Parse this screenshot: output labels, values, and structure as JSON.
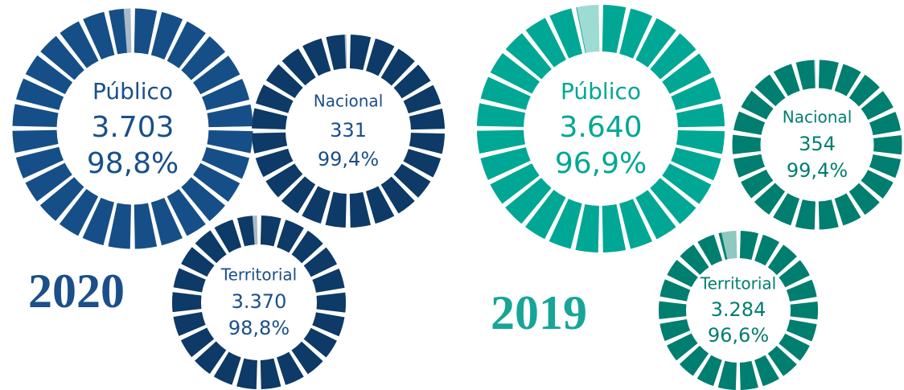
{
  "chart_data": [
    {
      "type": "donut",
      "label": "Público",
      "count": {
        "value": 3703,
        "label": "3.703"
      },
      "values": [
        98.8
      ],
      "value_labels": [
        "98,8%"
      ],
      "color": "#164f88",
      "rest_color": "#a9b9c9",
      "text_color": "#1a4f8a"
    },
    {
      "type": "donut",
      "label": "Nacional",
      "count": {
        "value": 331,
        "label": "331"
      },
      "values": [
        99.4
      ],
      "value_labels": [
        "99,4%"
      ],
      "color": "#0d3a66",
      "rest_color": "#a9b9c9",
      "text_color": "#1a4f8a"
    },
    {
      "type": "donut",
      "label": "Territorial",
      "count": {
        "value": 3370,
        "label": "3.370"
      },
      "values": [
        98.8
      ],
      "value_labels": [
        "98,8%"
      ],
      "color": "#0d3a66",
      "rest_color": "#a9b9c9",
      "text_color": "#1a4f8a"
    },
    {
      "type": "donut",
      "label": "Público",
      "count": {
        "value": 3640,
        "label": "3.640"
      },
      "values": [
        96.9
      ],
      "value_labels": [
        "96,9%"
      ],
      "color": "#00a795",
      "rest_color": "#9edcd3",
      "text_color": "#00a795"
    },
    {
      "type": "donut",
      "label": "Nacional",
      "count": {
        "value": 354,
        "label": "354"
      },
      "values": [
        99.4
      ],
      "value_labels": [
        "99,4%"
      ],
      "color": "#007e6f",
      "rest_color": "#8fc8be",
      "text_color": "#007e6f"
    },
    {
      "type": "donut",
      "label": "Territorial",
      "count": {
        "value": 3284,
        "label": "3.284"
      },
      "values": [
        96.6
      ],
      "value_labels": [
        "96,6%"
      ],
      "color": "#007e6f",
      "rest_color": "#8fc8be",
      "text_color": "#007e6f"
    }
  ],
  "year_labels": [
    {
      "text": "2020",
      "color": "#1a4f8a"
    },
    {
      "text": "2019",
      "color": "#17a597"
    }
  ]
}
